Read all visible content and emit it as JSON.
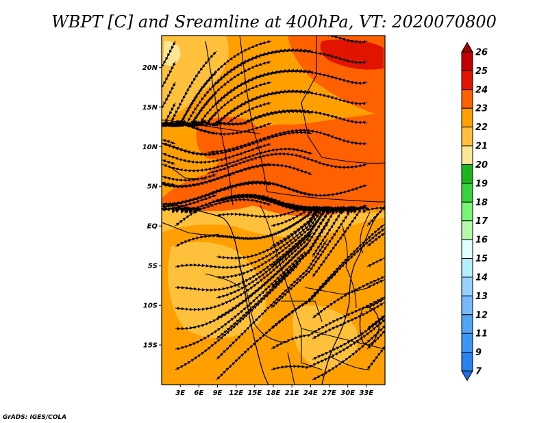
{
  "title": "WBPT [C] and Sreamline at 400hPa, VT: 2020070800",
  "credit": "GrADS: IGES/COLA",
  "map": {
    "lon_range": [
      0,
      36
    ],
    "lat_range": [
      -20,
      24
    ],
    "lon_ticks": [
      {
        "value": 3,
        "label": "3E"
      },
      {
        "value": 6,
        "label": "6E"
      },
      {
        "value": 9,
        "label": "9E"
      },
      {
        "value": 12,
        "label": "12E"
      },
      {
        "value": 15,
        "label": "15E"
      },
      {
        "value": 18,
        "label": "18E"
      },
      {
        "value": 21,
        "label": "21E"
      },
      {
        "value": 24,
        "label": "24E"
      },
      {
        "value": 27,
        "label": "27E"
      },
      {
        "value": 30,
        "label": "30E"
      },
      {
        "value": 33,
        "label": "33E"
      }
    ],
    "lat_ticks": [
      {
        "value": 20,
        "label": "20N"
      },
      {
        "value": 15,
        "label": "15N"
      },
      {
        "value": 10,
        "label": "10N"
      },
      {
        "value": 5,
        "label": "5N"
      },
      {
        "value": 0,
        "label": "EQ"
      },
      {
        "value": -5,
        "label": "5S"
      },
      {
        "value": -10,
        "label": "10S"
      },
      {
        "value": -15,
        "label": "15S"
      }
    ]
  },
  "colorbar": {
    "labels": [
      "7",
      "9",
      "11",
      "12",
      "13",
      "14",
      "15",
      "16",
      "17",
      "18",
      "19",
      "20",
      "21",
      "22",
      "23",
      "24",
      "25",
      "26"
    ],
    "colors": [
      "#1e6eeb",
      "#2882f0",
      "#3c96f5",
      "#50a5f5",
      "#78b9fa",
      "#96d2fa",
      "#b4f0fa",
      "#e1ffff",
      "#b4faaa",
      "#78f573",
      "#37d23c",
      "#1eb41e",
      "#fae696",
      "#ffc03c",
      "#ffa000",
      "#ff6000",
      "#e11400",
      "#c00000",
      "#a50000"
    ]
  },
  "field_colors": {
    "c19": "#fae696",
    "c20": "#ffc03c",
    "c21": "#ffa000",
    "c22": "#ff6000",
    "c23": "#e11400"
  }
}
